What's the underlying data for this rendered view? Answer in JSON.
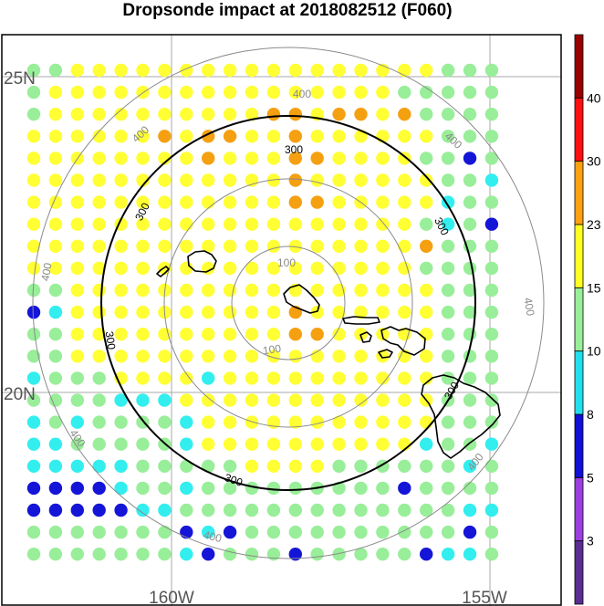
{
  "title": "Dropsonde impact at 2018082512 (F060)",
  "lat_labels": [
    "25N",
    "20N"
  ],
  "lon_labels": [
    "160W",
    "155W"
  ],
  "rings": [
    {
      "value": "100",
      "color": "#8a8a8a"
    },
    {
      "value": "200",
      "color": "#8a8a8a"
    },
    {
      "value": "300",
      "color": "#000000"
    },
    {
      "value": "400",
      "color": "#8a8a8a"
    }
  ],
  "colorbar": {
    "colors": [
      "#5a2d91",
      "#9b3fe0",
      "#1010d8",
      "#20e0f0",
      "#99ee99",
      "#ffff20",
      "#ffa010",
      "#ff1010",
      "#990000"
    ],
    "labels": [
      "3",
      "5",
      "8",
      "10",
      "15",
      "23",
      "30",
      "40"
    ]
  },
  "dots": {
    "legend": {
      "A": "#ffff33",
      "G": "#99ee99",
      "O": "#f5a010",
      "C": "#33eeee",
      "B": "#1515d8"
    },
    "rows": [
      "GGYYYYYYYYYYYYYYYYYGGG",
      "GYYYYYYYYYYYYYYYYGGGGG",
      "GYYYYYYYYYYOOYOOYOGGGG",
      "YYYYYYOYOOYYOYYYYYYGGG",
      "YYYYYYYYOYYYOOYYYYGGBG",
      "YYYYYYYYYYYYOYYYYYYGGC",
      "YYYYYYYYYYYYOOYYYYYCGG",
      "YYYYYYYYYYYYYYYYYYGCGB",
      "YYYYYYYYYYYYYYYYYYOGGG",
      "YYYYYYYYYYYYYYYYYYGGGG",
      "GGYYYYYYYYYYYYYYYYYGGG",
      "BCYYYYYYYYYYOYYYYYYGGG",
      "GGYYYYYYYYYYOOYYYYYGGG",
      "GGYYYYYYYYYYYYYYYYYGGG",
      "CGGGYYYYCYYYYYYYYYYGGG",
      "GGGGCCCYYYYYYYYYYYYGGG",
      "CGCGGGGCYYYYYYYYYYYGGG",
      "CCGGGGGCYYYYYYYYYYCGGC",
      "CCCCCGGGGGYYYYGGGGGGCG",
      "BBBBCGGCGGGGGGGGGBGGGG",
      "BBBBBCCGGGGGGGGGGGGGCC",
      "GGGGGGGBCBGGGGGGGGGGBG",
      "GGGGGGGCBGGGBGGGGGBCCG"
    ]
  }
}
